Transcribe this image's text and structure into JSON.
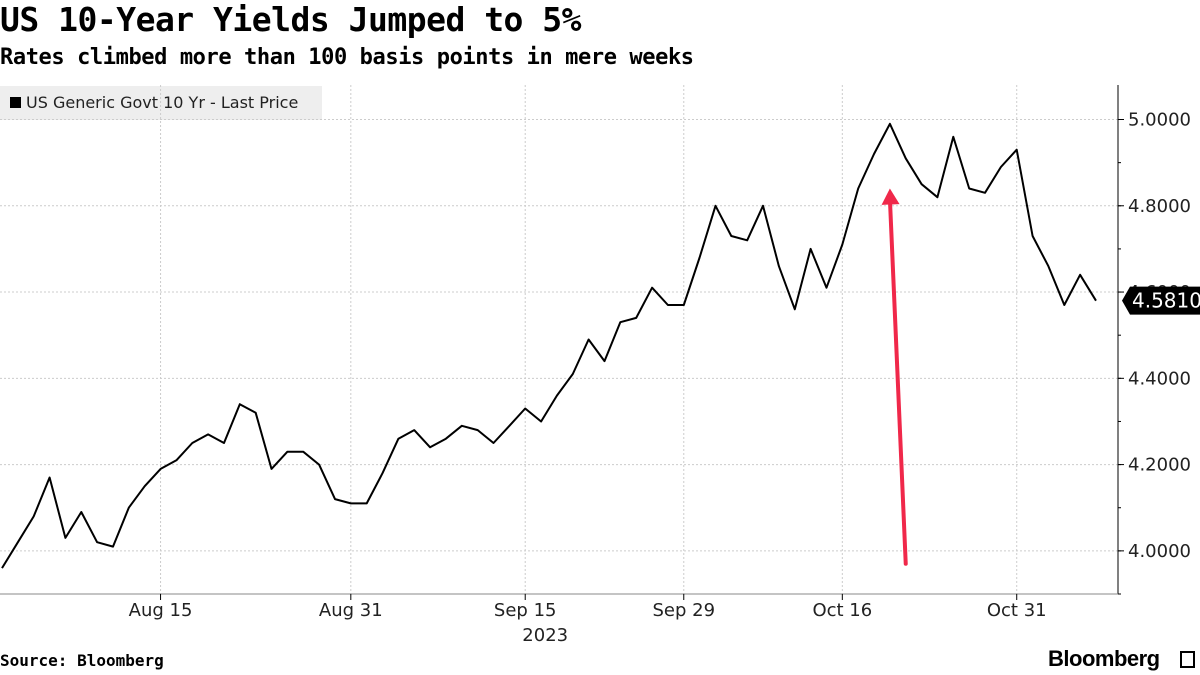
{
  "header": {
    "title": "US 10-Year Yields Jumped to 5%",
    "subtitle": "Rates climbed more than 100 basis points in mere weeks"
  },
  "legend": {
    "label": "US Generic Govt 10 Yr - Last Price"
  },
  "footer": {
    "source": "Source: Bloomberg",
    "brand": "Bloomberg"
  },
  "colors": {
    "line": "#000000",
    "arrow": "#f0284a",
    "grid": "#cccccc",
    "axis": "#000000"
  },
  "chart_data": {
    "type": "line",
    "title": "US 10-Year Yields Jumped to 5%",
    "xlabel": "2023",
    "ylabel": "",
    "ylim": [
      3.9,
      5.08
    ],
    "yticks": [
      4.0,
      4.2,
      4.4,
      4.6,
      4.8,
      5.0
    ],
    "ytick_labels": [
      "4.0000",
      "4.2000",
      "4.4000",
      "4.6000",
      "4.8000",
      "5.0000"
    ],
    "xticks": [
      {
        "label": "Aug 15",
        "index": 10
      },
      {
        "label": "Aug 31",
        "index": 22
      },
      {
        "label": "Sep 15",
        "index": 33
      },
      {
        "label": "Sep 29",
        "index": 43
      },
      {
        "label": "Oct 16",
        "index": 53
      },
      {
        "label": "Oct 31",
        "index": 64
      }
    ],
    "last_value_label": "4.5810",
    "series": [
      {
        "name": "US Generic Govt 10 Yr - Last Price",
        "values": [
          3.96,
          4.02,
          4.08,
          4.17,
          4.03,
          4.09,
          4.02,
          4.01,
          4.1,
          4.15,
          4.19,
          4.21,
          4.25,
          4.27,
          4.25,
          4.34,
          4.32,
          4.19,
          4.23,
          4.23,
          4.2,
          4.12,
          4.11,
          4.11,
          4.18,
          4.26,
          4.28,
          4.24,
          4.26,
          4.29,
          4.28,
          4.25,
          4.29,
          4.33,
          4.3,
          4.36,
          4.41,
          4.49,
          4.44,
          4.53,
          4.54,
          4.61,
          4.57,
          4.57,
          4.68,
          4.8,
          4.73,
          4.72,
          4.8,
          4.66,
          4.56,
          4.7,
          4.61,
          4.71,
          4.84,
          4.92,
          4.99,
          4.91,
          4.85,
          4.82,
          4.96,
          4.84,
          4.83,
          4.89,
          4.93,
          4.73,
          4.66,
          4.57,
          4.64,
          4.58
        ]
      }
    ],
    "annotation": {
      "type": "arrow",
      "from_index": 57,
      "from_value": 3.97,
      "to_index": 56,
      "to_value": 4.84
    }
  }
}
